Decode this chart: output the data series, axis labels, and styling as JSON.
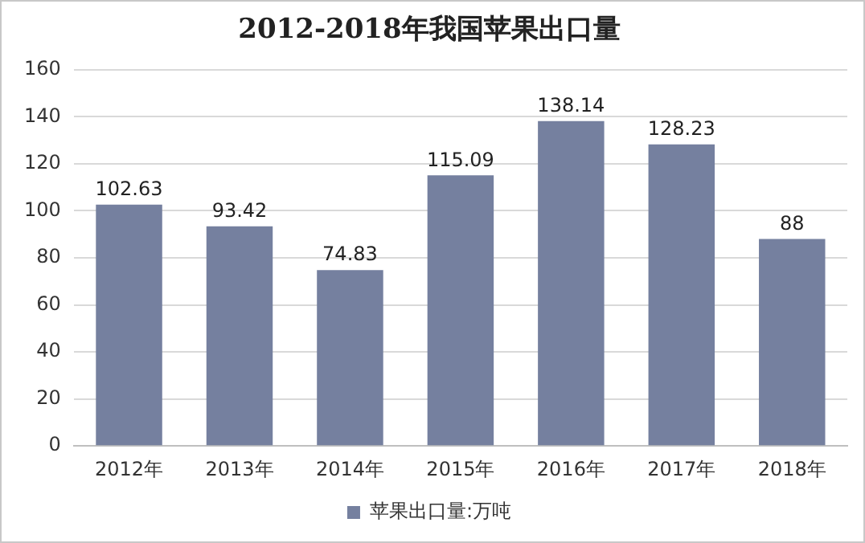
{
  "chart_data": {
    "type": "bar",
    "title": "2012-2018年我国苹果出口量",
    "categories": [
      "2012年",
      "2013年",
      "2014年",
      "2015年",
      "2016年",
      "2017年",
      "2018年"
    ],
    "series": [
      {
        "name": "苹果出口量:万吨",
        "color": "#75809f",
        "values": [
          102.63,
          93.42,
          74.83,
          115.09,
          138.14,
          128.23,
          88
        ]
      }
    ],
    "ylim": [
      0,
      160
    ],
    "yticks": [
      0,
      20,
      40,
      60,
      80,
      100,
      120,
      140,
      160
    ],
    "grid": "y",
    "legend": "bottom",
    "data_labels": true
  }
}
